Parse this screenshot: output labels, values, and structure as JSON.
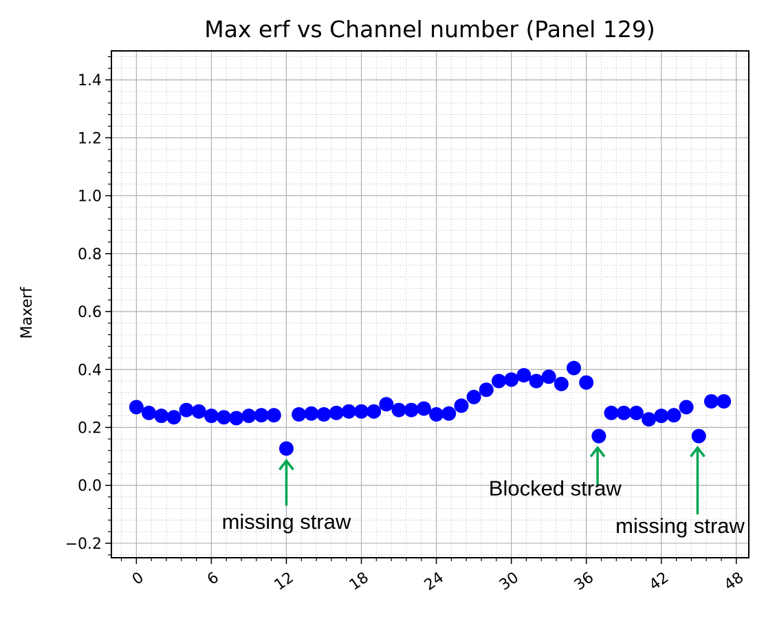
{
  "chart_data": {
    "type": "scatter",
    "title": "Max erf vs Channel number (Panel 129)",
    "xlabel": "",
    "ylabel": "Maxerf",
    "xlim": [
      -2,
      49
    ],
    "ylim": [
      -0.25,
      1.5
    ],
    "xticks": [
      0,
      6,
      12,
      18,
      24,
      30,
      36,
      42,
      48
    ],
    "xtick_labels": [
      "0",
      "6",
      "12",
      "18",
      "24",
      "30",
      "36",
      "42",
      "48"
    ],
    "yticks": [
      -0.2,
      0.0,
      0.2,
      0.4,
      0.6,
      0.8,
      1.0,
      1.2,
      1.4
    ],
    "ytick_labels": [
      "−0.2",
      "0.0",
      "0.2",
      "0.4",
      "0.6",
      "0.8",
      "1.0",
      "1.2",
      "1.4"
    ],
    "grid": true,
    "minor_grid": true,
    "marker_color": "#0000ff",
    "series": [
      {
        "x": [
          0,
          1,
          2,
          3,
          4,
          5,
          6,
          7,
          8,
          9,
          10,
          11,
          12,
          13,
          14,
          15,
          16,
          17,
          18,
          19,
          20,
          21,
          22,
          23,
          24,
          25,
          26,
          27,
          28,
          29,
          30,
          31,
          32,
          33,
          34,
          35,
          36,
          37,
          38,
          39,
          40,
          41,
          42,
          43,
          44,
          45,
          46,
          47
        ],
        "y": [
          0.27,
          0.25,
          0.24,
          0.235,
          0.26,
          0.255,
          0.24,
          0.235,
          0.232,
          0.24,
          0.242,
          0.242,
          0.127,
          0.245,
          0.248,
          0.245,
          0.25,
          0.255,
          0.255,
          0.255,
          0.28,
          0.26,
          0.26,
          0.265,
          0.245,
          0.248,
          0.275,
          0.305,
          0.33,
          0.36,
          0.365,
          0.38,
          0.36,
          0.375,
          0.35,
          0.405,
          0.355,
          0.17,
          0.25,
          0.25,
          0.25,
          0.228,
          0.24,
          0.242,
          0.27,
          0.17,
          0.29,
          0.29
        ]
      }
    ],
    "annotations": [
      {
        "text": "missing straw",
        "arrow_color": "#00a651",
        "arrow_x": 12,
        "arrow_from": -0.07,
        "arrow_to": 0.085,
        "text_x": 12,
        "text_y": -0.15
      },
      {
        "text": "Blocked straw",
        "arrow_color": "#00a651",
        "arrow_x": 36.9,
        "arrow_from": 0.0,
        "arrow_to": 0.13,
        "text_x": 33.5,
        "text_y": -0.035
      },
      {
        "text": "missing straw",
        "arrow_color": "#00a651",
        "arrow_x": 44.9,
        "arrow_from": -0.1,
        "arrow_to": 0.13,
        "text_x": 43.5,
        "text_y": -0.165
      }
    ]
  }
}
